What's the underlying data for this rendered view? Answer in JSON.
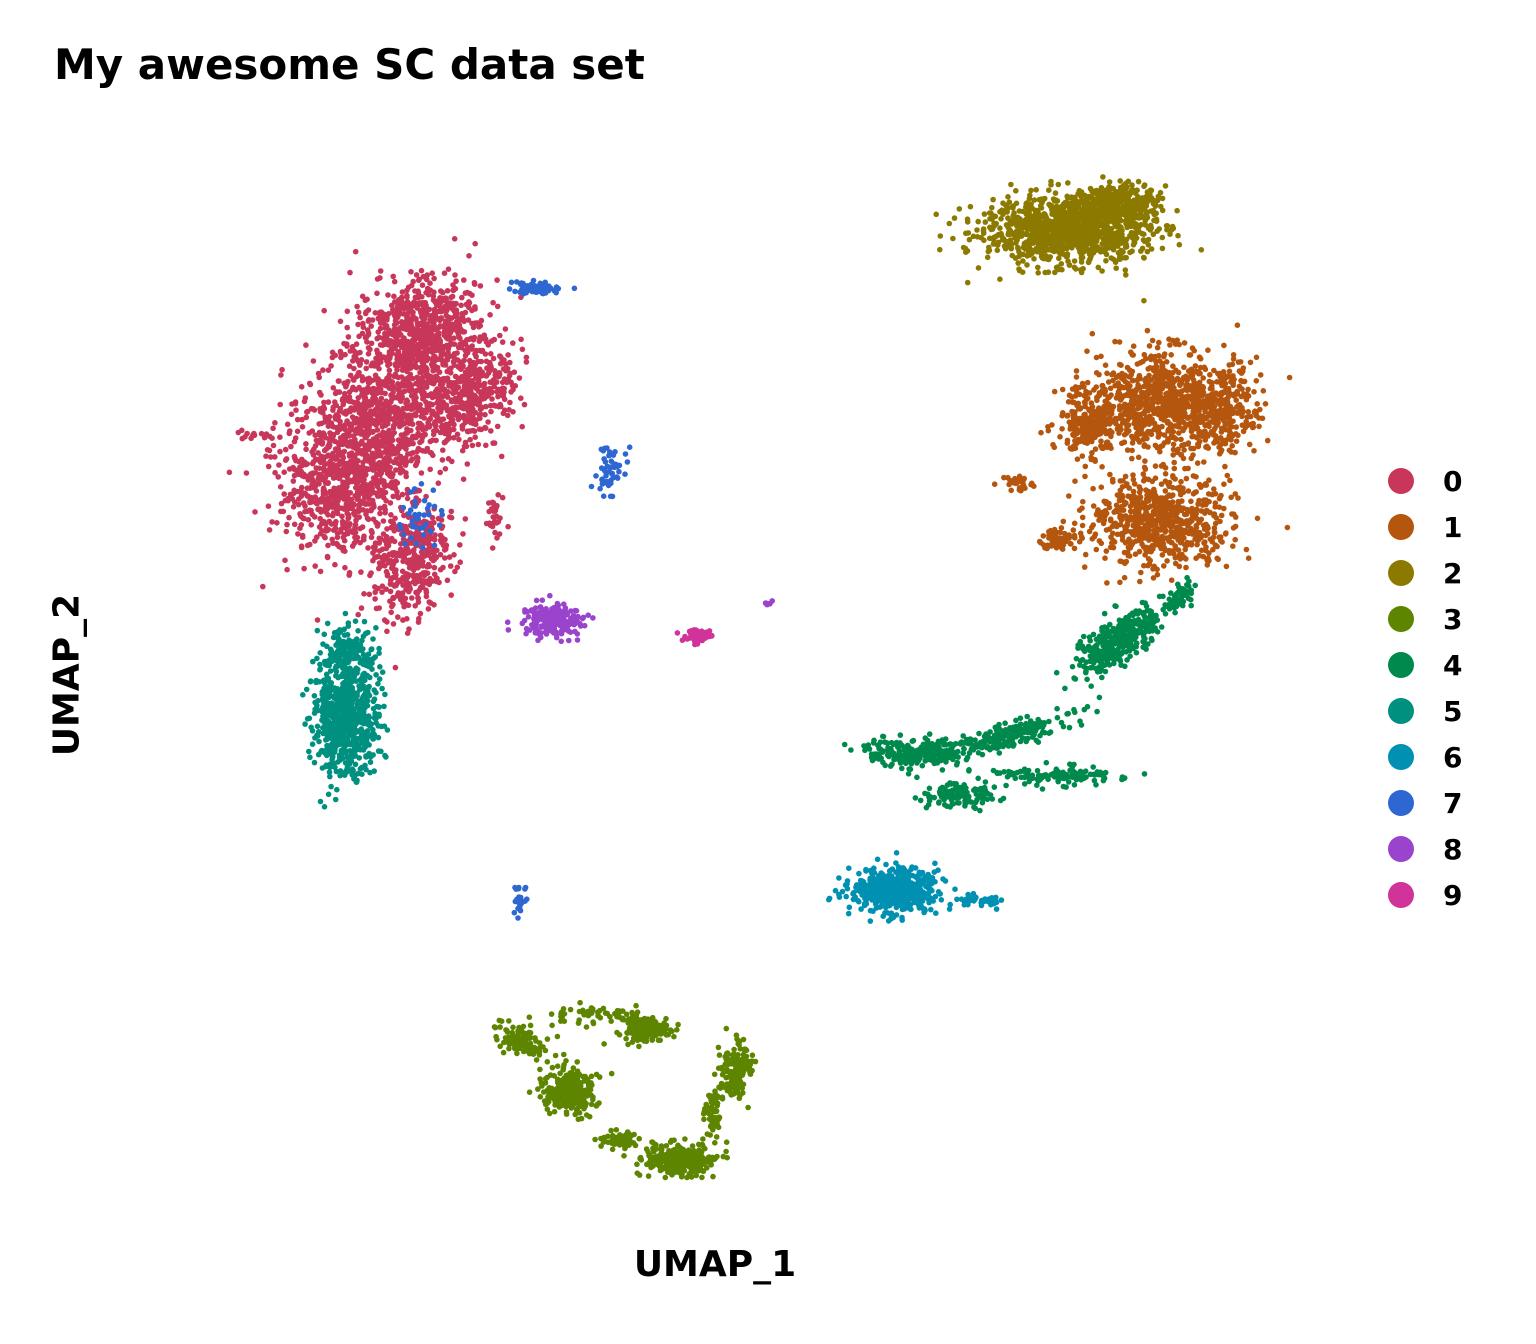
{
  "chart_data": {
    "type": "scatter",
    "title": "My awesome SC data set",
    "xlabel": "UMAP_1",
    "ylabel": "UMAP_2",
    "grid": false,
    "axes_ticks_visible": false,
    "legend_placement": "right",
    "x_range": [
      -12,
      12
    ],
    "y_range": [
      -12,
      12
    ],
    "series": [
      {
        "name": "0",
        "color": "#C8365A"
      },
      {
        "name": "1",
        "color": "#B5560F"
      },
      {
        "name": "2",
        "color": "#8C7A00"
      },
      {
        "name": "3",
        "color": "#5E8500"
      },
      {
        "name": "4",
        "color": "#00894C"
      },
      {
        "name": "5",
        "color": "#009080"
      },
      {
        "name": "6",
        "color": "#0090B2"
      },
      {
        "name": "7",
        "color": "#2E67D1"
      },
      {
        "name": "8",
        "color": "#9A43CC"
      },
      {
        "name": "9",
        "color": "#D0339A"
      }
    ]
  }
}
